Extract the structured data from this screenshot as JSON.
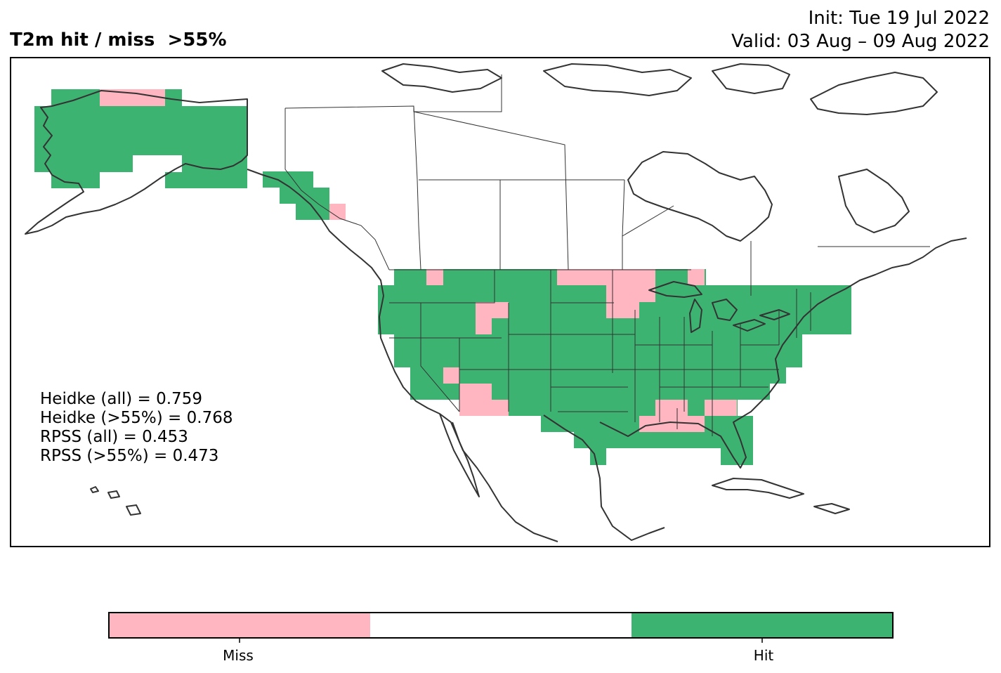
{
  "title": "T2m hit / miss  >55%",
  "init_line": "Init: Tue 19 Jul 2022",
  "valid_line": "Valid: 03 Aug – 09 Aug 2022",
  "stats": [
    "Heidke (all) = 0.759",
    "Heidke (>55%) = 0.768",
    "RPSS (all) = 0.453",
    "RPSS (>55%) = 0.473"
  ],
  "legend": {
    "categories": [
      {
        "label": "Miss",
        "color": "#ffb6c1"
      },
      {
        "label": "",
        "color": "#ffffff"
      },
      {
        "label": "Hit",
        "color": "#3cb371"
      }
    ]
  },
  "colors": {
    "hit": "#3cb371",
    "miss": "#ffb6c1",
    "coast": "#333333"
  }
}
